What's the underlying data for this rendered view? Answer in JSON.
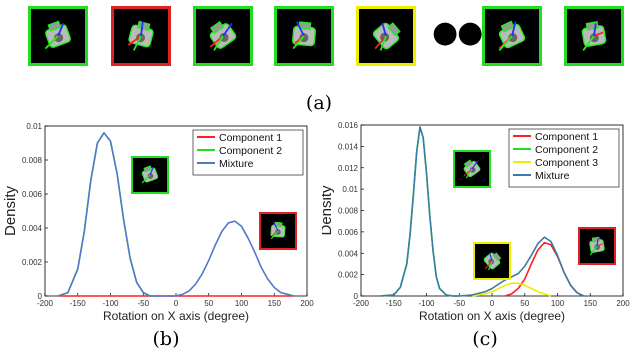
{
  "strip": {
    "thumbnails": [
      {
        "border": "#22dd22"
      },
      {
        "border": "#dd2222"
      },
      {
        "border": "#22dd22"
      },
      {
        "border": "#22dd22"
      },
      {
        "border": "#eeee00"
      },
      {
        "border": "#22dd22"
      },
      {
        "border": "#22dd22"
      }
    ],
    "ellipsis": "●●●"
  },
  "captions": {
    "a": "(a)",
    "b": "(b)",
    "c": "(c)"
  },
  "chart_data": [
    {
      "id": "b",
      "type": "line",
      "title": "",
      "xlabel": "Rotation on X axis (degree)",
      "ylabel": "Density",
      "xlim": [
        -200,
        200
      ],
      "ylim": [
        0,
        0.01
      ],
      "xticks": [
        -200,
        -150,
        -100,
        -50,
        0,
        50,
        100,
        150,
        200
      ],
      "yticks": [
        0,
        0.002,
        0.004,
        0.006,
        0.008,
        0.01
      ],
      "ytick_labels": [
        "0",
        "0.002",
        "0.004",
        "0.006",
        "0.008",
        "0.01"
      ],
      "grid": false,
      "legend_position": "top-right",
      "series": [
        {
          "name": "Component 1",
          "color": "#ff2020",
          "x": [
            -180,
            -150,
            -100,
            -50,
            0,
            20,
            50,
            80,
            90,
            120,
            150,
            180
          ],
          "y": [
            0,
            0,
            0,
            0,
            0,
            0,
            0,
            0,
            0,
            0,
            0,
            0
          ]
        },
        {
          "name": "Component 2",
          "color": "#22dd22",
          "x": [
            -180,
            -165,
            -150,
            -140,
            -130,
            -120,
            -110,
            -100,
            -90,
            -80,
            -70,
            -60,
            -50,
            -40,
            -30
          ],
          "y": [
            0,
            0.0002,
            0.0016,
            0.0038,
            0.0068,
            0.009,
            0.0096,
            0.0091,
            0.0072,
            0.0045,
            0.0022,
            0.0008,
            0.0002,
            0,
            0
          ]
        },
        {
          "name": "Mixture",
          "color": "#5577cc",
          "x": [
            -180,
            -165,
            -150,
            -140,
            -130,
            -120,
            -110,
            -100,
            -90,
            -80,
            -70,
            -60,
            -50,
            -40,
            -30,
            -10,
            0,
            10,
            20,
            30,
            40,
            50,
            60,
            70,
            80,
            90,
            100,
            110,
            120,
            130,
            140,
            150,
            160,
            170,
            180
          ],
          "y": [
            0,
            0.0002,
            0.0016,
            0.0038,
            0.0068,
            0.009,
            0.0096,
            0.0091,
            0.0072,
            0.0045,
            0.0022,
            0.0008,
            0.0002,
            0,
            0,
            0,
            0,
            0.0001,
            0.0003,
            0.0007,
            0.0013,
            0.0021,
            0.003,
            0.0038,
            0.0043,
            0.0044,
            0.0041,
            0.0034,
            0.0026,
            0.0017,
            0.001,
            0.0005,
            0.0002,
            0.0001,
            0
          ]
        }
      ]
    },
    {
      "id": "c",
      "type": "line",
      "title": "",
      "xlabel": "Rotation on X axis (degree)",
      "ylabel": "Density",
      "xlim": [
        -200,
        200
      ],
      "ylim": [
        0,
        0.016
      ],
      "xticks": [
        -200,
        -150,
        -100,
        -50,
        0,
        50,
        100,
        150,
        200
      ],
      "yticks": [
        0,
        0.002,
        0.004,
        0.006,
        0.008,
        0.01,
        0.012,
        0.014,
        0.016
      ],
      "ytick_labels": [
        "0",
        "0.002",
        "0.004",
        "0.006",
        "0.008",
        "0.01",
        "0.012",
        "0.014",
        "0.016"
      ],
      "grid": false,
      "legend_position": "top-right",
      "series": [
        {
          "name": "Component 1",
          "color": "#ff2020",
          "x": [
            20,
            30,
            40,
            50,
            60,
            70,
            80,
            90,
            100,
            110,
            120,
            130,
            140
          ],
          "y": [
            0,
            0.0002,
            0.0007,
            0.0016,
            0.003,
            0.0043,
            0.005,
            0.0048,
            0.0037,
            0.0022,
            0.001,
            0.0003,
            0
          ]
        },
        {
          "name": "Component 2",
          "color": "#22dd22",
          "x": [
            -170,
            -150,
            -140,
            -130,
            -125,
            -120,
            -115,
            -110,
            -105,
            -100,
            -95,
            -90,
            -85,
            -80,
            -70,
            -60,
            -50
          ],
          "y": [
            0,
            0.0001,
            0.0008,
            0.003,
            0.0058,
            0.0095,
            0.0135,
            0.0158,
            0.0148,
            0.0115,
            0.0075,
            0.0042,
            0.0018,
            0.0007,
            0.0001,
            0,
            0
          ]
        },
        {
          "name": "Component 3",
          "color": "#eeee00",
          "x": [
            -30,
            -10,
            0,
            10,
            20,
            30,
            40,
            50,
            60,
            70,
            80,
            90
          ],
          "y": [
            0,
            0.0002,
            0.0004,
            0.0007,
            0.001,
            0.0012,
            0.0012,
            0.001,
            0.0007,
            0.0004,
            0.0002,
            0
          ]
        },
        {
          "name": "Mixture",
          "color": "#3a7ca5",
          "x": [
            -170,
            -150,
            -140,
            -130,
            -125,
            -120,
            -115,
            -110,
            -105,
            -100,
            -95,
            -90,
            -85,
            -80,
            -70,
            -60,
            -50,
            -30,
            -10,
            0,
            10,
            20,
            30,
            40,
            50,
            60,
            70,
            80,
            90,
            100,
            110,
            120,
            130,
            140
          ],
          "y": [
            0,
            0.0001,
            0.0008,
            0.003,
            0.0058,
            0.0095,
            0.0135,
            0.0158,
            0.0148,
            0.0115,
            0.0075,
            0.0042,
            0.0018,
            0.0007,
            0.0001,
            0,
            0,
            0.0001,
            0.0004,
            0.0007,
            0.0011,
            0.0015,
            0.0018,
            0.0021,
            0.0028,
            0.0038,
            0.0049,
            0.0055,
            0.0051,
            0.0038,
            0.0022,
            0.001,
            0.0003,
            0
          ]
        }
      ]
    }
  ]
}
